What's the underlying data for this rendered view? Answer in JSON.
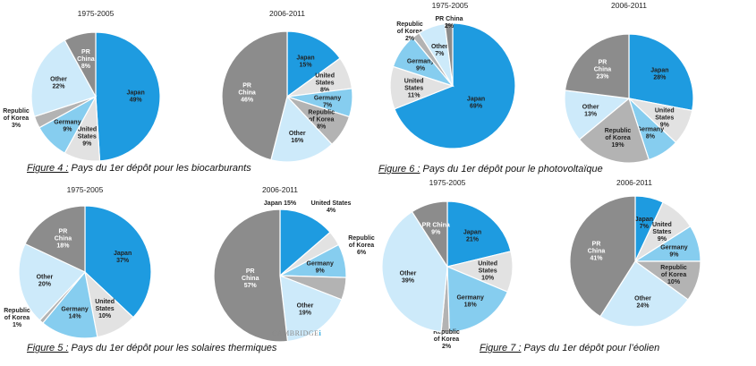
{
  "captions": {
    "fig4": {
      "label": "Figure 4 :",
      "text": " Pays du 1er dépôt pour les biocarburants"
    },
    "fig5": {
      "label": "Figure 5 :",
      "text": " Pays du 1er dépôt pour les solaires thermiques"
    },
    "fig6": {
      "label": "Figure 6 :",
      "text": " Pays du 1er dépôt pour le photovoltaïque"
    },
    "fig7": {
      "label": "Figure 7 :",
      "text": " Pays du 1er dépôt pour l’éolien"
    }
  },
  "watermark": {
    "text": "CAMBRIDGE",
    "mark": "i"
  },
  "colors": {
    "Japan": "#1e9be0",
    "United States": "#e2e2e2",
    "Germany": "#86cdef",
    "Republic of Korea": "#b3b3b3",
    "Other": "#cdeafa",
    "PR China": "#8c8c8c"
  },
  "chart_data": [
    {
      "id": "fig4a",
      "type": "pie",
      "title": "1975-2005",
      "slices": [
        {
          "name": "Japan",
          "label": "Japan",
          "value": 49
        },
        {
          "name": "United States",
          "label": "United\nStates",
          "value": 9
        },
        {
          "name": "Germany",
          "label": "Germany",
          "value": 9
        },
        {
          "name": "Republic of Korea",
          "label": "Republic\nof Korea",
          "value": 3
        },
        {
          "name": "Other",
          "label": "Other",
          "value": 22
        },
        {
          "name": "PR China",
          "label": "PR\nChina",
          "value": 8
        }
      ]
    },
    {
      "id": "fig4b",
      "type": "pie",
      "title": "2006-2011",
      "slices": [
        {
          "name": "Japan",
          "label": "Japan",
          "value": 15
        },
        {
          "name": "United States",
          "label": "United\nStates",
          "value": 8
        },
        {
          "name": "Germany",
          "label": "Germany",
          "value": 7
        },
        {
          "name": "Republic of Korea",
          "label": "Republic\nof Korea",
          "value": 8
        },
        {
          "name": "Other",
          "label": "Other",
          "value": 16
        },
        {
          "name": "PR China",
          "label": "PR\nChina",
          "value": 46
        }
      ]
    },
    {
      "id": "fig6a",
      "type": "pie",
      "title": "1975-2005",
      "slices": [
        {
          "name": "Japan",
          "label": "Japan",
          "value": 69
        },
        {
          "name": "United States",
          "label": "United\nStates",
          "value": 11
        },
        {
          "name": "Germany",
          "label": "Germany",
          "value": 9
        },
        {
          "name": "Republic of Korea",
          "label": "Republic\nof Korea",
          "value": 2
        },
        {
          "name": "Other",
          "label": "Other",
          "value": 7
        },
        {
          "name": "PR China",
          "label": "PR China",
          "value": 2
        }
      ]
    },
    {
      "id": "fig6b",
      "type": "pie",
      "title": "2006-2011",
      "slices": [
        {
          "name": "Japan",
          "label": "Japan",
          "value": 28
        },
        {
          "name": "United States",
          "label": "United\nStates",
          "value": 9
        },
        {
          "name": "Germany",
          "label": "Germany",
          "value": 8
        },
        {
          "name": "Republic of Korea",
          "label": "Republic\nof Korea",
          "value": 19
        },
        {
          "name": "Other",
          "label": "Other",
          "value": 13
        },
        {
          "name": "PR China",
          "label": "PR\nChina",
          "value": 23
        }
      ]
    },
    {
      "id": "fig5a",
      "type": "pie",
      "title": "1975-2005",
      "slices": [
        {
          "name": "Japan",
          "label": "Japan",
          "value": 37
        },
        {
          "name": "United States",
          "label": "United\nStates",
          "value": 10
        },
        {
          "name": "Germany",
          "label": "Germany",
          "value": 14
        },
        {
          "name": "Republic of Korea",
          "label": "Republic\nof Korea",
          "value": 1
        },
        {
          "name": "Other",
          "label": "Other",
          "value": 20
        },
        {
          "name": "PR China",
          "label": "PR\nChina",
          "value": 18
        }
      ]
    },
    {
      "id": "fig5b",
      "type": "pie",
      "title": "2006-2011",
      "slices": [
        {
          "name": "Japan",
          "label": "Japan",
          "value": 15
        },
        {
          "name": "United States",
          "label": "United States",
          "value": 4
        },
        {
          "name": "Germany",
          "label": "Germany",
          "value": 9
        },
        {
          "name": "Republic of Korea",
          "label": "Republic\nof Korea",
          "value": 6
        },
        {
          "name": "Other",
          "label": "Other",
          "value": 19
        },
        {
          "name": "PR China",
          "label": "PR\nChina",
          "value": 57
        }
      ]
    },
    {
      "id": "fig7a",
      "type": "pie",
      "title": "1975-2005",
      "slices": [
        {
          "name": "Japan",
          "label": "Japan",
          "value": 21
        },
        {
          "name": "United States",
          "label": "United\nStates",
          "value": 10
        },
        {
          "name": "Germany",
          "label": "Germany",
          "value": 18
        },
        {
          "name": "Republic of Korea",
          "label": "Republic\nof Korea",
          "value": 2
        },
        {
          "name": "Other",
          "label": "Other",
          "value": 39
        },
        {
          "name": "PR China",
          "label": "PR China",
          "value": 9
        }
      ]
    },
    {
      "id": "fig7b",
      "type": "pie",
      "title": "2006-2011",
      "slices": [
        {
          "name": "Japan",
          "label": "Japan",
          "value": 7
        },
        {
          "name": "United States",
          "label": "United\nStates",
          "value": 9
        },
        {
          "name": "Germany",
          "label": "Germany",
          "value": 9
        },
        {
          "name": "Republic of Korea",
          "label": "Republic\nof Korea",
          "value": 10
        },
        {
          "name": "Other",
          "label": "Other",
          "value": 24
        },
        {
          "name": "PR China",
          "label": "PR\nChina",
          "value": 41
        }
      ]
    }
  ]
}
